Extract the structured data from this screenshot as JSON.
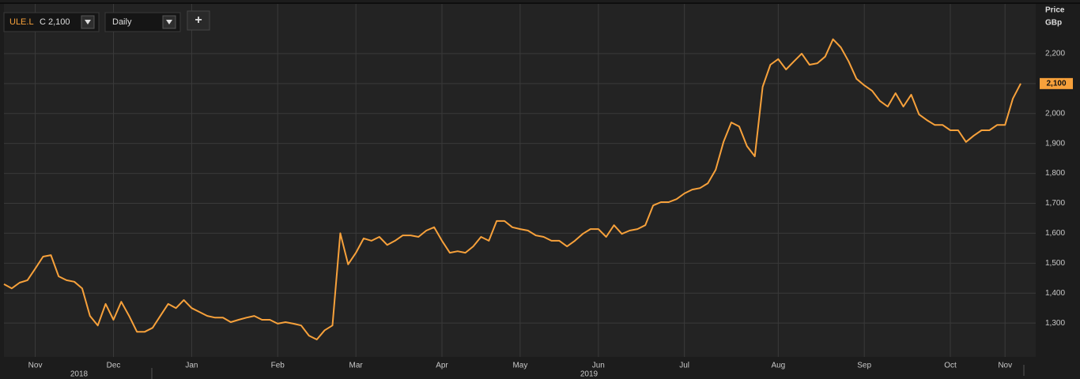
{
  "toolbar": {
    "close": "C 2,100",
    "interval": "Daily",
    "add": "+"
  },
  "chart_data": {
    "type": "line",
    "categories": [
      null,
      null,
      null,
      null,
      "Nov",
      null,
      null,
      null,
      null,
      null,
      null,
      null,
      null,
      null,
      "Dec",
      null,
      null,
      null,
      null,
      null,
      null,
      null,
      null,
      null,
      "Jan",
      null,
      null,
      null,
      null,
      null,
      null,
      null,
      null,
      null,
      null,
      "Feb",
      null,
      null,
      null,
      null,
      null,
      null,
      null,
      null,
      null,
      "Mar",
      null,
      null,
      null,
      null,
      null,
      null,
      null,
      null,
      null,
      null,
      "Apr",
      null,
      null,
      null,
      null,
      null,
      null,
      null,
      null,
      null,
      "May",
      null,
      null,
      null,
      null,
      null,
      null,
      null,
      null,
      null,
      "Jun",
      null,
      null,
      null,
      null,
      null,
      null,
      null,
      null,
      null,
      null,
      "Jul",
      null,
      null,
      null,
      null,
      null,
      null,
      null,
      null,
      null,
      null,
      null,
      "Aug",
      null,
      null,
      null,
      null,
      null,
      null,
      null,
      null,
      null,
      null,
      "Sep",
      null,
      null,
      null,
      null,
      null,
      null,
      null,
      null,
      null,
      null,
      "Oct",
      null,
      null,
      null,
      null,
      null,
      null,
      "Nov",
      null,
      null
    ],
    "series": [
      {
        "name": "ULE.L",
        "color": "#f7a13b",
        "values": [
          1430,
          1416,
          1435,
          1443,
          1482,
          1522,
          1527,
          1456,
          1443,
          1438,
          1416,
          1324,
          1292,
          1364,
          1311,
          1371,
          1324,
          1271,
          1271,
          1284,
          1324,
          1364,
          1350,
          1377,
          1350,
          1337,
          1324,
          1318,
          1318,
          1303,
          1311,
          1318,
          1324,
          1311,
          1311,
          1298,
          1303,
          1298,
          1292,
          1258,
          1245,
          1276,
          1292,
          1600,
          1496,
          1535,
          1583,
          1575,
          1588,
          1561,
          1575,
          1593,
          1593,
          1588,
          1609,
          1620,
          1575,
          1535,
          1540,
          1535,
          1556,
          1588,
          1575,
          1641,
          1641,
          1620,
          1614,
          1609,
          1593,
          1588,
          1575,
          1575,
          1556,
          1575,
          1598,
          1614,
          1614,
          1588,
          1627,
          1598,
          1609,
          1614,
          1627,
          1693,
          1704,
          1704,
          1714,
          1733,
          1746,
          1751,
          1767,
          1812,
          1905,
          1970,
          1957,
          1891,
          1857,
          2089,
          2163,
          2182,
          2147,
          2174,
          2200,
          2163,
          2168,
          2190,
          2248,
          2221,
          2174,
          2116,
          2094,
          2076,
          2042,
          2023,
          2068,
          2023,
          2063,
          1997,
          1978,
          1962,
          1962,
          1944,
          1944,
          1905,
          1926,
          1944,
          1944,
          1962,
          1962,
          2050,
          2100
        ]
      }
    ],
    "ylim": [
      1187,
      2366
    ],
    "yticks": [
      {
        "value": 1300,
        "label": "1,300"
      },
      {
        "value": 1400,
        "label": "1,400"
      },
      {
        "value": 1500,
        "label": "1,500"
      },
      {
        "value": 1600,
        "label": "1,600"
      },
      {
        "value": 1700,
        "label": "1,700"
      },
      {
        "value": 1800,
        "label": "1,800"
      },
      {
        "value": 1900,
        "label": "1,900"
      },
      {
        "value": 2000,
        "label": "2,000"
      },
      {
        "value": 2100,
        "label": "2,100"
      },
      {
        "value": 2200,
        "label": "2,200"
      }
    ],
    "y_axis_title": [
      "Price",
      "GBp"
    ],
    "year_labels": [
      "2018",
      "2019"
    ],
    "last_label": "2,100",
    "grid": true
  }
}
